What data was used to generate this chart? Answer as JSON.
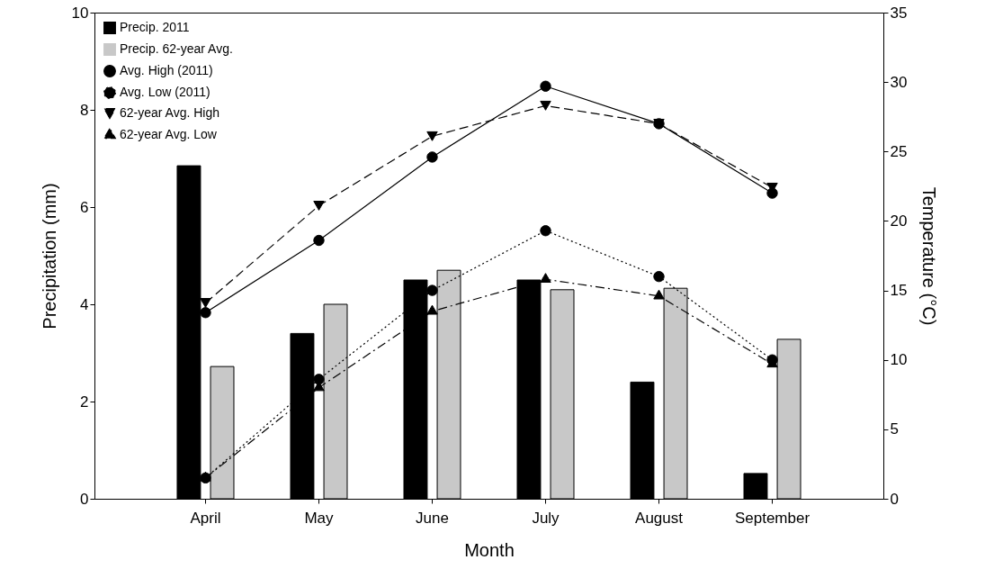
{
  "chart_data": {
    "type": "bar",
    "xlabel": "Month",
    "ylabel": "Precipitation (mm)",
    "y2label": "Temperature (°C)",
    "categories": [
      "April",
      "May",
      "June",
      "July",
      "August",
      "September"
    ],
    "ylim": [
      0,
      10
    ],
    "yticks": [
      0,
      2,
      4,
      6,
      8,
      10
    ],
    "y2lim": [
      0,
      35
    ],
    "y2ticks": [
      0,
      5,
      10,
      15,
      20,
      25,
      30,
      35
    ],
    "legend": "top left",
    "grid": false,
    "series": [
      {
        "name": "Precip. 2011",
        "color": "#000000",
        "values": [
          6.85,
          3.4,
          4.5,
          4.5,
          2.4,
          0.52
        ]
      },
      {
        "name": "Precip. 62-year Avg.",
        "color": "#c8c8c8",
        "values": [
          2.72,
          4.0,
          4.7,
          4.3,
          4.33,
          3.28
        ]
      },
      {
        "name": "Avg. High (2011)",
        "type": "line",
        "axis": "y2",
        "color": "#000000",
        "marker": "circle",
        "line_style": "solid",
        "values": [
          13.4,
          18.6,
          24.6,
          29.7,
          27.0,
          22.0
        ]
      },
      {
        "name": "Avg. Low (2011)",
        "type": "line",
        "axis": "y2",
        "color": "#000000",
        "marker": "circle",
        "line_style": "dotted",
        "values": [
          1.5,
          8.6,
          15.0,
          19.3,
          16.0,
          10.0
        ]
      },
      {
        "name": "62-year Avg. High",
        "type": "line",
        "axis": "y2",
        "color": "#000000",
        "marker": "triangle-down",
        "line_style": "dashed",
        "values": [
          14.1,
          21.1,
          26.1,
          28.3,
          27.0,
          22.4
        ]
      },
      {
        "name": "62-year Avg. Low",
        "type": "line",
        "axis": "y2",
        "color": "#000000",
        "marker": "triangle",
        "line_style": "dashdot",
        "values": [
          1.5,
          8.0,
          13.5,
          15.8,
          14.6,
          9.7
        ]
      }
    ]
  }
}
